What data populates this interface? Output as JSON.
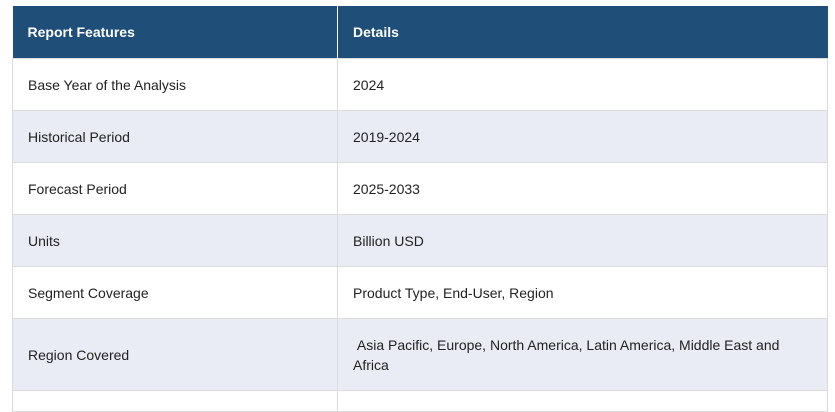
{
  "table": {
    "headers": [
      "Report Features",
      "Details"
    ],
    "rows": [
      {
        "feature": "Base Year of the Analysis",
        "details": "2024"
      },
      {
        "feature": "Historical Period",
        "details": "2019-2024"
      },
      {
        "feature": "Forecast Period",
        "details": "2025-2033"
      },
      {
        "feature": "Units",
        "details": "Billion USD"
      },
      {
        "feature": "Segment Coverage",
        "details": "Product Type, End-User, Region"
      },
      {
        "feature": "Region Covered",
        "details": " Asia Pacific, Europe, North America, Latin America, Middle East and Africa"
      }
    ]
  }
}
